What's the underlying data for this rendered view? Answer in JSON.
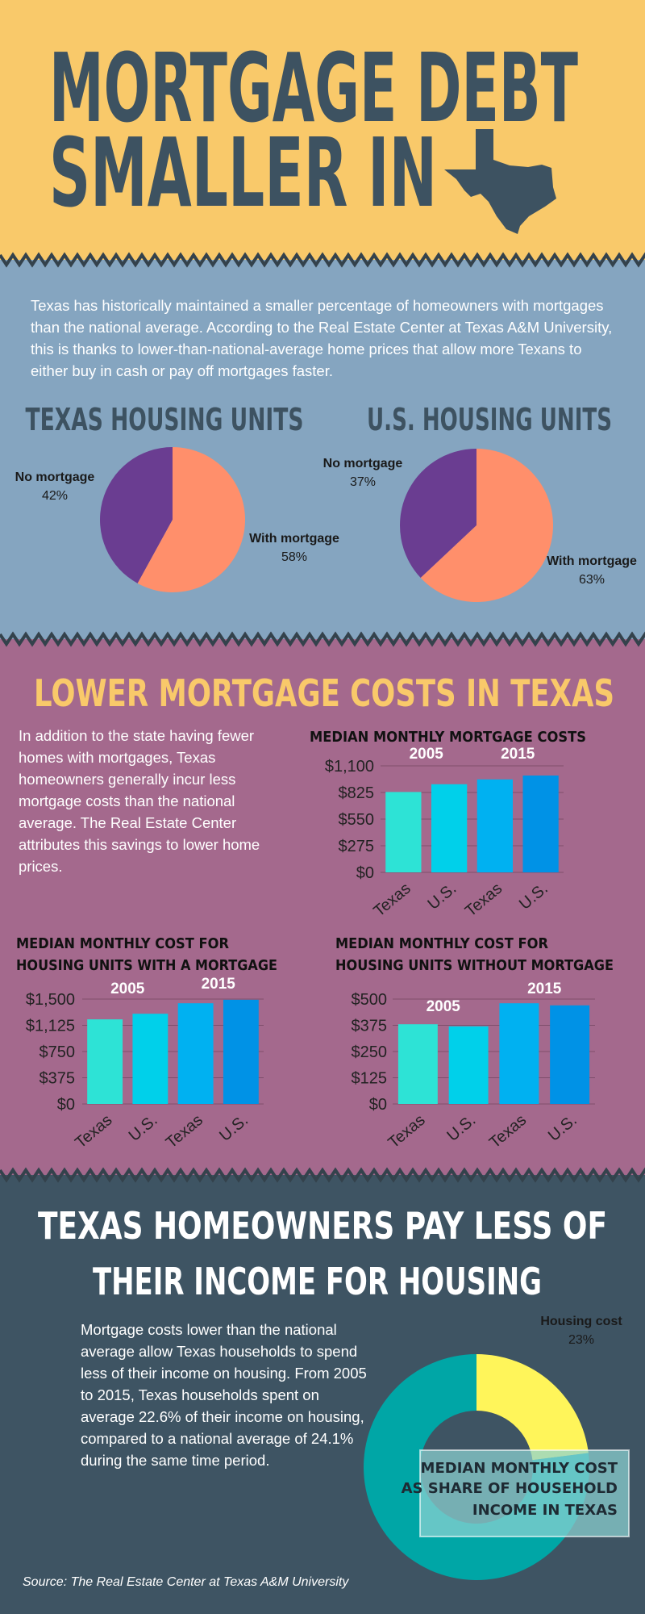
{
  "header": {
    "title_lines": [
      "MORTGAGE DEBT",
      "SMALLER IN"
    ]
  },
  "intro": {
    "text": "Texas has historically maintained a smaller percentage of homeowners with mortgages than the national average. According to the Real Estate Center at Texas A&M University, this is thanks to lower-than-national-average home prices that allow more Texans to either buy in cash or pay off mortgages faster."
  },
  "costs_section": {
    "title": "LOWER MORTGAGE COSTS IN TEXAS",
    "text": "In addition to the state having fewer homes with mortgages, Texas homeowners generally incur less mortgage costs than the national average. The Real Estate Center attributes this savings to lower home prices."
  },
  "income_section": {
    "title_lines": [
      "TEXAS HOMEOWNERS PAY LESS OF",
      "THEIR INCOME FOR HOUSING"
    ],
    "text": "Mortgage costs lower than the national average allow Texas households to spend less of their income on housing. From 2005 to 2015, Texas households spent on average 22.6% of their income on housing, compared to a national average of 24.1% during the same time period."
  },
  "source": "Source: The Real Estate Center at Texas A&M University",
  "chart_data": [
    {
      "type": "pie",
      "title": "TEXAS HOUSING UNITS",
      "categories": [
        "No mortgage",
        "With mortgage"
      ],
      "values": [
        42,
        58
      ],
      "value_labels": [
        "42%",
        "58%"
      ],
      "colors": [
        "#6a3d91",
        "#ff8f6b"
      ]
    },
    {
      "type": "pie",
      "title": "U.S. HOUSING UNITS",
      "categories": [
        "No mortgage",
        "With mortgage"
      ],
      "values": [
        37,
        63
      ],
      "value_labels": [
        "37%",
        "63%"
      ],
      "colors": [
        "#6a3d91",
        "#ff8f6b"
      ]
    },
    {
      "type": "bar",
      "title": "MEDIAN MONTHLY MORTGAGE COSTS",
      "annotations": [
        "2005",
        "2015"
      ],
      "categories": [
        "Texas",
        "U.S.",
        "Texas",
        "U.S."
      ],
      "values": [
        830,
        910,
        960,
        1000
      ],
      "colors": [
        "#2de3d6",
        "#00d0ea",
        "#00b1f1",
        "#0092e6"
      ],
      "ylim": [
        0,
        1100
      ],
      "yticks": [
        {
          "value": 0,
          "label": "$0"
        },
        {
          "value": 275,
          "label": "$275"
        },
        {
          "value": 550,
          "label": "$550"
        },
        {
          "value": 825,
          "label": "$825"
        },
        {
          "value": 1100,
          "label": "$1,100"
        }
      ],
      "grid": true
    },
    {
      "type": "bar",
      "title_lines": [
        "MEDIAN MONTHLY COST FOR",
        "HOUSING UNITS WITH A MORTGAGE"
      ],
      "annotations": [
        "2005",
        "2015"
      ],
      "categories": [
        "Texas",
        "U.S.",
        "Texas",
        "U.S."
      ],
      "values": [
        1210,
        1290,
        1440,
        1490
      ],
      "colors": [
        "#2de3d6",
        "#00d0ea",
        "#00b1f1",
        "#0092e6"
      ],
      "ylim": [
        0,
        1500
      ],
      "yticks": [
        {
          "value": 0,
          "label": "$0"
        },
        {
          "value": 375,
          "label": "$375"
        },
        {
          "value": 750,
          "label": "$750"
        },
        {
          "value": 1125,
          "label": "$1,125"
        },
        {
          "value": 1500,
          "label": "$1,500"
        }
      ],
      "grid": true
    },
    {
      "type": "bar",
      "title_lines": [
        "MEDIAN MONTHLY COST FOR",
        "HOUSING UNITS WITHOUT MORTGAGE"
      ],
      "annotations": [
        "2005",
        "2015"
      ],
      "categories": [
        "Texas",
        "U.S.",
        "Texas",
        "U.S."
      ],
      "values": [
        380,
        370,
        480,
        470
      ],
      "colors": [
        "#2de3d6",
        "#00d0ea",
        "#00b1f1",
        "#0092e6"
      ],
      "ylim": [
        0,
        500
      ],
      "yticks": [
        {
          "value": 0,
          "label": "$0"
        },
        {
          "value": 125,
          "label": "$125"
        },
        {
          "value": 250,
          "label": "$250"
        },
        {
          "value": 375,
          "label": "$375"
        },
        {
          "value": 500,
          "label": "$500"
        }
      ],
      "grid": true
    },
    {
      "type": "donut",
      "title_lines": [
        "MEDIAN MONTHLY COST",
        "AS SHARE OF HOUSEHOLD",
        "INCOME IN TEXAS"
      ],
      "categories": [
        "Housing cost",
        null
      ],
      "values": [
        23,
        77
      ],
      "value_labels": [
        "23%",
        null
      ],
      "colors": [
        "#fff55a",
        "#00a6a6"
      ]
    }
  ]
}
